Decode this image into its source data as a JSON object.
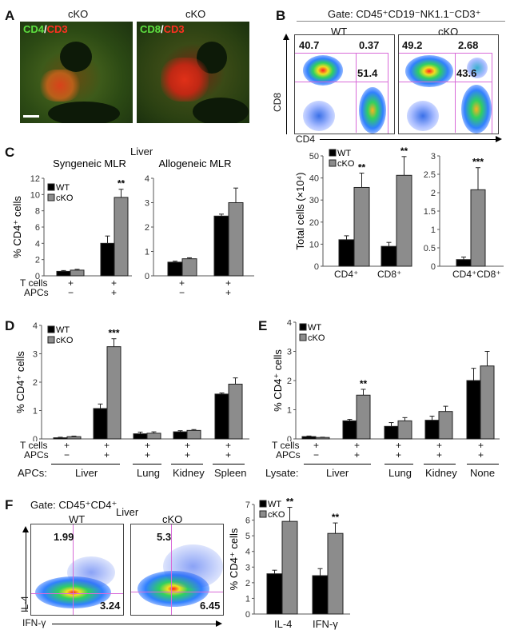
{
  "figure": {
    "panels": [
      "A",
      "B",
      "C",
      "D",
      "E",
      "F"
    ]
  },
  "panel_a": {
    "label": "A",
    "images": [
      {
        "title": "cKO",
        "stain_green": "CD4",
        "sep": "/",
        "stain_red": "CD3"
      },
      {
        "title": "cKO",
        "stain_green": "CD8",
        "sep": "/",
        "stain_red": "CD3"
      }
    ]
  },
  "panel_b": {
    "label": "B",
    "gate": "Gate: CD45⁺CD19⁻NK1.1⁻CD3⁺",
    "x_axis": "CD4",
    "y_axis": "CD8",
    "plots": [
      {
        "title": "WT",
        "q_ul": "40.7",
        "q_ur": "0.37",
        "q_lr": "51.4"
      },
      {
        "title": "cKO",
        "q_ul": "49.2",
        "q_ur": "2.68",
        "q_lr": "43.6"
      }
    ]
  },
  "panel_c": {
    "label": "C",
    "group_title": "Liver",
    "row_labels": {
      "tcells": "T cells",
      "apcs": "APCs"
    }
  },
  "panel_d": {
    "label": "D",
    "row_labels": {
      "tcells": "T cells",
      "apcs": "APCs",
      "group": "APCs:"
    },
    "groups": [
      "Liver",
      "Lung",
      "Kidney",
      "Spleen"
    ]
  },
  "panel_e": {
    "label": "E",
    "row_labels": {
      "tcells": "T cells",
      "apcs": "APCs",
      "group": "Lysate:"
    },
    "groups": [
      "Liver",
      "Lung",
      "Kidney",
      "None"
    ]
  },
  "panel_f": {
    "label": "F",
    "gate": "Gate: CD45⁺CD4⁺",
    "tissue": "Liver",
    "x_axis": "IFN-γ",
    "y_axis": "IL-4",
    "plots": [
      {
        "title": "WT",
        "q_ul": "1.99",
        "q_lr": "3.24"
      },
      {
        "title": "cKO",
        "q_ul": "5.3",
        "q_lr": "6.45"
      }
    ]
  },
  "legend": {
    "wt": "WT",
    "cko": "cKO",
    "wt_color": "#000000",
    "cko_color": "#8c8c8c"
  },
  "chart_data": [
    {
      "id": "B-bar-left",
      "type": "bar",
      "categories": [
        "CD4⁺",
        "CD8⁺"
      ],
      "series": [
        {
          "name": "WT",
          "values": [
            12,
            9
          ],
          "errors": [
            1.8,
            1.8
          ]
        },
        {
          "name": "cKO",
          "values": [
            35.7,
            41.2
          ],
          "errors": [
            6.5,
            8.5
          ]
        }
      ],
      "significance": [
        "**",
        "**"
      ],
      "ylabel": "Total cells (×10⁴)",
      "ylim": [
        0,
        50
      ],
      "yticks": [
        0,
        10,
        20,
        30,
        40,
        50
      ]
    },
    {
      "id": "B-bar-right",
      "type": "bar",
      "categories": [
        "CD4⁺CD8⁺"
      ],
      "series": [
        {
          "name": "WT",
          "values": [
            0.18
          ],
          "errors": [
            0.07
          ]
        },
        {
          "name": "cKO",
          "values": [
            2.08
          ],
          "errors": [
            0.6
          ]
        }
      ],
      "significance": [
        "***"
      ],
      "ylim": [
        0,
        3
      ],
      "yticks": [
        0,
        0.5,
        1,
        1.5,
        2,
        2.5,
        3
      ]
    },
    {
      "id": "C-syngeneic",
      "type": "bar",
      "title": "Syngeneic MLR",
      "categories": [
        "T+ APC−",
        "T+ APC+"
      ],
      "tcells": [
        "+",
        "+"
      ],
      "apcs": [
        "−",
        "+"
      ],
      "series": [
        {
          "name": "WT",
          "values": [
            0.55,
            4.0
          ],
          "errors": [
            0.1,
            0.9
          ]
        },
        {
          "name": "cKO",
          "values": [
            0.7,
            9.65
          ],
          "errors": [
            0.1,
            1.0
          ]
        }
      ],
      "significance": [
        "",
        "**"
      ],
      "ylabel": "% CD4⁺ cells",
      "ylim": [
        0,
        12
      ],
      "yticks": [
        0,
        2,
        4,
        6,
        8,
        10,
        12
      ]
    },
    {
      "id": "C-allogeneic",
      "type": "bar",
      "title": "Allogeneic MLR",
      "categories": [
        "T+ APC−",
        "T+ APC+"
      ],
      "tcells": [
        "+",
        "+"
      ],
      "apcs": [
        "−",
        "+"
      ],
      "series": [
        {
          "name": "WT",
          "values": [
            0.56,
            2.45
          ],
          "errors": [
            0.04,
            0.08
          ]
        },
        {
          "name": "cKO",
          "values": [
            0.7,
            3.0
          ],
          "errors": [
            0.04,
            0.6
          ]
        }
      ],
      "significance": [
        "",
        ""
      ],
      "ylim": [
        0,
        4
      ],
      "yticks": [
        0,
        1,
        2,
        3,
        4
      ]
    },
    {
      "id": "D",
      "type": "bar",
      "categories": [
        "Liver APC−",
        "Liver",
        "Lung",
        "Kidney",
        "Spleen"
      ],
      "tcells": [
        "+",
        "+",
        "+",
        "+",
        "+"
      ],
      "apcs": [
        "−",
        "+",
        "+",
        "+",
        "+"
      ],
      "series": [
        {
          "name": "WT",
          "values": [
            0.04,
            1.07,
            0.18,
            0.25,
            1.58
          ],
          "errors": [
            0.02,
            0.16,
            0.06,
            0.04,
            0.04
          ]
        },
        {
          "name": "cKO",
          "values": [
            0.08,
            3.25,
            0.2,
            0.3,
            1.93
          ],
          "errors": [
            0.02,
            0.28,
            0.05,
            0.03,
            0.22
          ]
        }
      ],
      "significance": [
        "",
        "***",
        "",
        "",
        ""
      ],
      "ylabel": "% CD4⁺ cells",
      "ylim": [
        0,
        4
      ],
      "yticks": [
        0,
        1,
        2,
        3,
        4
      ]
    },
    {
      "id": "E",
      "type": "bar",
      "categories": [
        "Liver APC−",
        "Liver",
        "Lung",
        "Kidney",
        "None"
      ],
      "tcells": [
        "+",
        "+",
        "+",
        "+",
        "+"
      ],
      "apcs": [
        "−",
        "+",
        "+",
        "+",
        "+"
      ],
      "series": [
        {
          "name": "WT",
          "values": [
            0.08,
            0.62,
            0.43,
            0.64,
            2.0
          ],
          "errors": [
            0.02,
            0.05,
            0.13,
            0.14,
            0.42
          ]
        },
        {
          "name": "cKO",
          "values": [
            0.05,
            1.5,
            0.62,
            0.94,
            2.5
          ],
          "errors": [
            0.01,
            0.2,
            0.11,
            0.18,
            0.5
          ]
        }
      ],
      "significance": [
        "",
        "**",
        "",
        "",
        ""
      ],
      "ylabel": "% CD4⁺ cells",
      "ylim": [
        0,
        4
      ],
      "yticks": [
        0,
        1,
        2,
        3,
        4
      ]
    },
    {
      "id": "F-bar",
      "type": "bar",
      "categories": [
        "IL-4",
        "IFN-γ"
      ],
      "series": [
        {
          "name": "WT",
          "values": [
            2.57,
            2.45
          ],
          "errors": [
            0.23,
            0.45
          ]
        },
        {
          "name": "cKO",
          "values": [
            5.92,
            5.15
          ],
          "errors": [
            0.9,
            0.67
          ]
        }
      ],
      "significance": [
        "**",
        "**"
      ],
      "ylabel": "% CD4⁺ cells",
      "ylim": [
        0,
        7
      ],
      "yticks": [
        0,
        1,
        2,
        3,
        4,
        5,
        6,
        7
      ]
    }
  ]
}
